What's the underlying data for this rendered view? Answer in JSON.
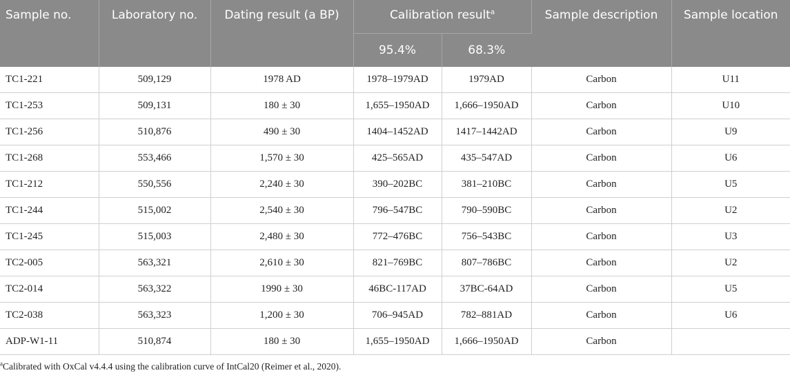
{
  "table": {
    "headers": {
      "sample_no": "Sample no.",
      "laboratory_no": "Laboratory no.",
      "dating_result": "Dating result (a BP)",
      "calibration_result": "Calibration result",
      "calibration_marker": "a",
      "cal_95": "95.4%",
      "cal_68": "68.3%",
      "sample_description": "Sample description",
      "sample_location": "Sample location"
    },
    "rows": [
      [
        "TC1-221",
        "509,129",
        "1978 AD",
        "1978–1979AD",
        "1979AD",
        "Carbon",
        "U11"
      ],
      [
        "TC1-253",
        "509,131",
        "180 ± 30",
        "1,655–1950AD",
        "1,666–1950AD",
        "Carbon",
        "U10"
      ],
      [
        "TC1-256",
        "510,876",
        "490 ± 30",
        "1404–1452AD",
        "1417–1442AD",
        "Carbon",
        "U9"
      ],
      [
        "TC1-268",
        "553,466",
        "1,570 ± 30",
        "425–565AD",
        "435–547AD",
        "Carbon",
        "U6"
      ],
      [
        "TC1-212",
        "550,556",
        "2,240 ± 30",
        "390–202BC",
        "381–210BC",
        "Carbon",
        "U5"
      ],
      [
        "TC1-244",
        "515,002",
        "2,540 ± 30",
        "796–547BC",
        "790–590BC",
        "Carbon",
        "U2"
      ],
      [
        "TC1-245",
        "515,003",
        "2,480 ± 30",
        "772–476BC",
        "756–543BC",
        "Carbon",
        "U3"
      ],
      [
        "TC2-005",
        "563,321",
        "2,610 ± 30",
        "821–769BC",
        "807–786BC",
        "Carbon",
        "U2"
      ],
      [
        "TC2-014",
        "563,322",
        "1990 ± 30",
        "46BC-117AD",
        "37BC-64AD",
        "Carbon",
        "U5"
      ],
      [
        "TC2-038",
        "563,323",
        "1,200 ± 30",
        "706–945AD",
        "782–881AD",
        "Carbon",
        "U6"
      ],
      [
        "ADP-W1-11",
        "510,874",
        "180 ± 30",
        "1,655–1950AD",
        "1,666–1950AD",
        "Carbon",
        ""
      ]
    ]
  },
  "footnote": {
    "marker": "a",
    "text": "Calibrated with OxCal v4.4.4 using the calibration curve of IntCal20 (Reimer et al., 2020)."
  }
}
